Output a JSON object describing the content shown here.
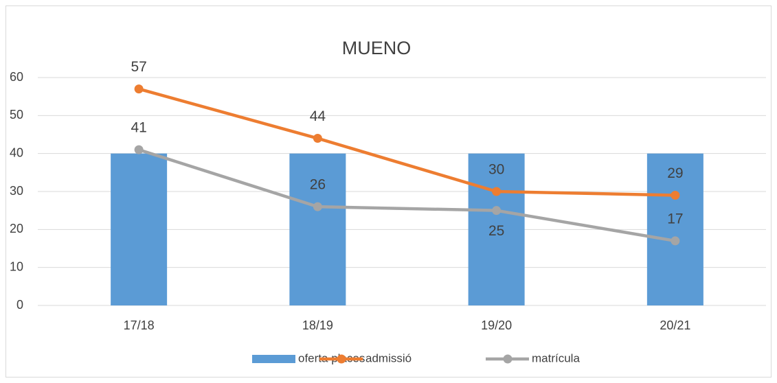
{
  "chart_data": {
    "type": "bar",
    "title": "MUENO",
    "categories": [
      "17/18",
      "18/19",
      "19/20",
      "20/21"
    ],
    "series": [
      {
        "name": "oferta places",
        "type": "bar",
        "color": "#5b9bd5",
        "values": [
          40,
          40,
          40,
          40
        ]
      },
      {
        "name": "admissió",
        "type": "line",
        "color": "#ed7d31",
        "values": [
          57,
          44,
          30,
          29
        ],
        "data_labels": true
      },
      {
        "name": "matrícula",
        "type": "line",
        "color": "#a5a5a5",
        "values": [
          41,
          26,
          25,
          17
        ],
        "data_labels": true
      }
    ],
    "ylim": [
      0,
      60
    ],
    "yticks": [
      0,
      10,
      20,
      30,
      40,
      50,
      60
    ],
    "grid": true,
    "legend": "bottom"
  }
}
